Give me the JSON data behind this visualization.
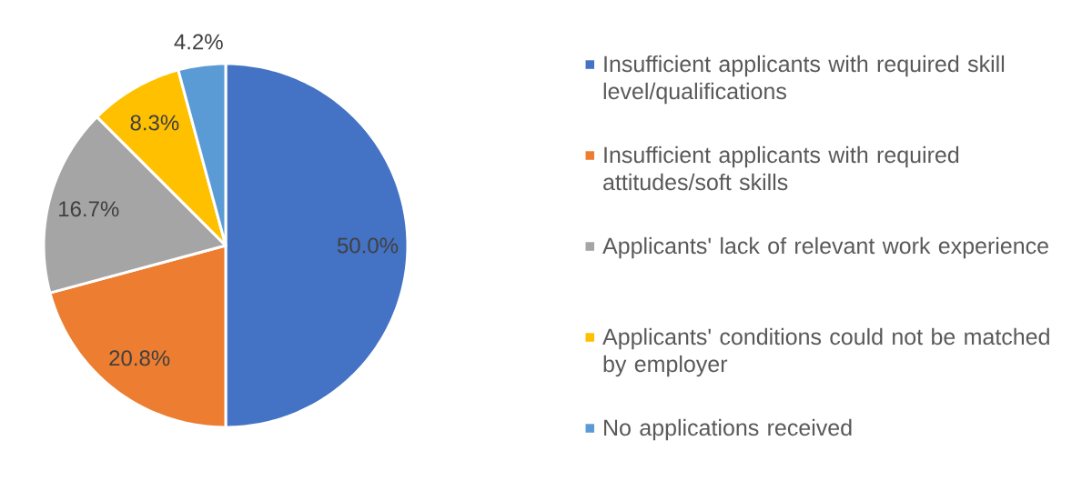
{
  "chart_data": {
    "type": "pie",
    "categories": [
      "Insufficient applicants with required skill level/qualifications",
      "Insufficient applicants with required attitudes/soft skills",
      "Applicants' lack of relevant work experience",
      "Applicants' conditions could not be matched by employer",
      "No applications received"
    ],
    "values": [
      50.0,
      20.8,
      16.7,
      8.3,
      4.2
    ],
    "colors": [
      "#4472c4",
      "#ed7d31",
      "#a5a5a5",
      "#ffc000",
      "#5b9bd5"
    ],
    "value_labels": [
      "50.0%",
      "20.8%",
      "16.7%",
      "8.3%",
      "4.2%"
    ],
    "legend": "right"
  }
}
